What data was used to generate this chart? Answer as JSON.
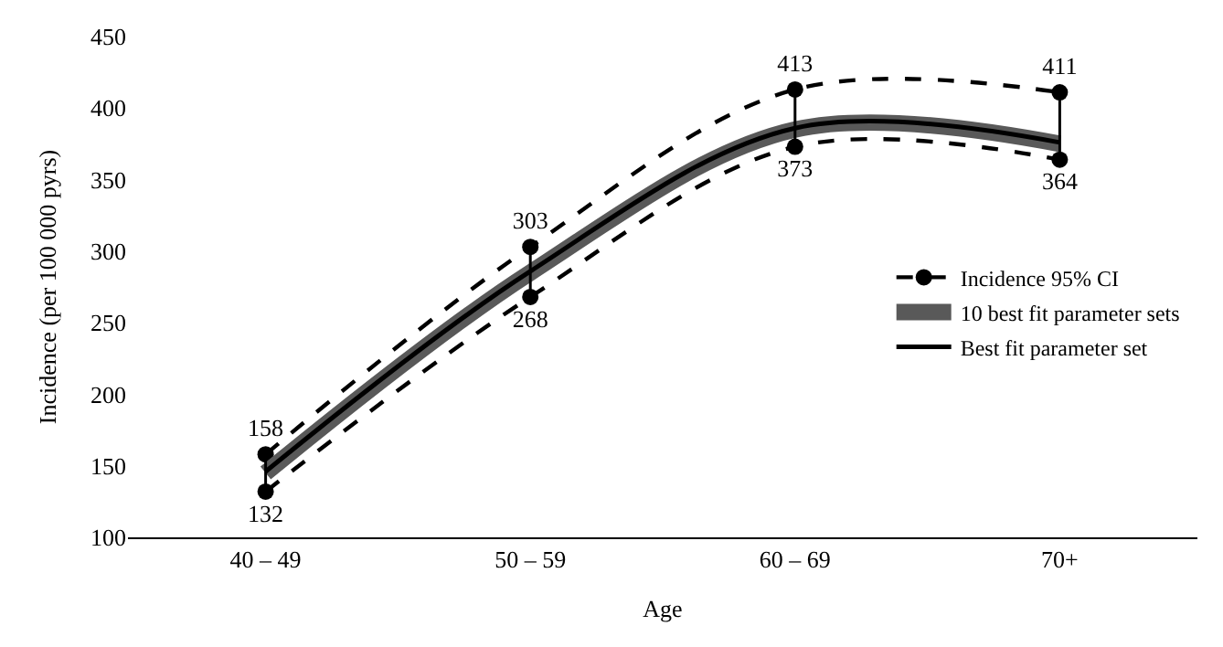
{
  "chart_data": {
    "type": "line",
    "xlabel": "Age",
    "ylabel": "Incidence (per 100 000 pyrs)",
    "categories": [
      "40 – 49",
      "50 – 59",
      "60 – 69",
      "70+"
    ],
    "series": [
      {
        "name": "Incidence 95% CI",
        "color": "#000000",
        "values": [
          158,
          303,
          413,
          411
        ],
        "value_labels": [
          "158",
          "303",
          "413",
          "411"
        ],
        "line_style": "dashed",
        "marker": "circle"
      },
      {
        "color": "#000000",
        "values": [
          132,
          268,
          373,
          364
        ],
        "value_labels": [
          "132",
          "268",
          "373",
          "364"
        ],
        "line_style": "dashed",
        "marker": "circle"
      },
      {
        "name": "10 best fit parameter sets",
        "color": "#595959",
        "values": [
          145,
          285,
          385,
          375
        ],
        "line_style": "solid",
        "marker": "none"
      },
      {
        "name": "Best fit parameter set",
        "color": "#000000",
        "values": [
          146,
          286,
          386,
          376
        ],
        "line_style": "solid",
        "marker": "none"
      }
    ],
    "ylim": [
      100,
      450
    ],
    "yticks": [
      100,
      150,
      200,
      250,
      300,
      350,
      400,
      450
    ],
    "legend": "right"
  }
}
